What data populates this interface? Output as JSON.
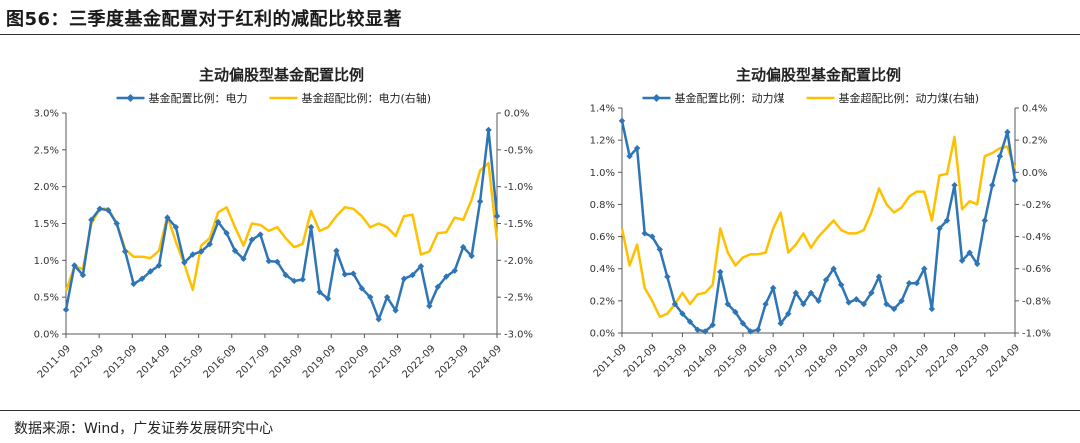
{
  "figure": {
    "title": "图56：三季度基金配置对于红利的减配比较显著",
    "source": "数据来源：Wind，广发证券发展研究中心"
  },
  "colors": {
    "blue": "#2E75B6",
    "yellow": "#FFC000",
    "axis": "#595959"
  },
  "chart_data": [
    {
      "type": "line",
      "title": "主动偏股型基金配置比例",
      "x_tick_labels": [
        "2011-09",
        "2012-09",
        "2013-09",
        "2014-09",
        "2015-09",
        "2016-09",
        "2017-09",
        "2018-09",
        "2019-09",
        "2020-09",
        "2021-09",
        "2022-09",
        "2023-09",
        "2024-09"
      ],
      "x_start": 2011.75,
      "x_end": 2024.75,
      "y_left": {
        "range": [
          0,
          0.03
        ],
        "ticks": [
          0,
          0.005,
          0.01,
          0.015,
          0.02,
          0.025,
          0.03
        ],
        "tick_labels": [
          "0.0%",
          "0.5%",
          "1.0%",
          "1.5%",
          "2.0%",
          "2.5%",
          "3.0%"
        ]
      },
      "y_right": {
        "range": [
          -0.03,
          0
        ],
        "ticks": [
          -0.03,
          -0.025,
          -0.02,
          -0.015,
          -0.01,
          -0.005,
          0
        ],
        "tick_labels": [
          "-3.0%",
          "-2.5%",
          "-2.0%",
          "-1.5%",
          "-1.0%",
          "-0.5%",
          "0.0%"
        ]
      },
      "grid": false,
      "legend_position": "top",
      "series": [
        {
          "name": "基金配置比例：电力",
          "axis": "left",
          "color": "#2E75B6",
          "marker": "diamond",
          "values": [
            0.0033,
            0.0093,
            0.008,
            0.0155,
            0.017,
            0.0168,
            0.015,
            0.0112,
            0.0068,
            0.0075,
            0.0085,
            0.0093,
            0.0158,
            0.0145,
            0.0097,
            0.0108,
            0.0112,
            0.0122,
            0.0152,
            0.0137,
            0.0113,
            0.0102,
            0.0128,
            0.0135,
            0.0099,
            0.0098,
            0.008,
            0.0072,
            0.0074,
            0.0145,
            0.0057,
            0.0048,
            0.0113,
            0.0081,
            0.0082,
            0.0062,
            0.005,
            0.002,
            0.005,
            0.0032,
            0.0075,
            0.008,
            0.0092,
            0.0038,
            0.0064,
            0.0078,
            0.0086,
            0.0118,
            0.0106,
            0.018,
            0.0277,
            0.016
          ]
        },
        {
          "name": "基金超配比例：电力(右轴)",
          "axis": "right",
          "color": "#FFC000",
          "marker": "none",
          "values": [
            -0.0242,
            -0.0208,
            -0.0212,
            -0.015,
            -0.013,
            -0.013,
            -0.015,
            -0.0185,
            -0.0195,
            -0.0195,
            -0.0197,
            -0.0187,
            -0.014,
            -0.0175,
            -0.0205,
            -0.024,
            -0.018,
            -0.017,
            -0.0135,
            -0.0128,
            -0.0155,
            -0.018,
            -0.015,
            -0.0152,
            -0.016,
            -0.0155,
            -0.017,
            -0.0182,
            -0.0178,
            -0.0133,
            -0.016,
            -0.0155,
            -0.014,
            -0.0128,
            -0.013,
            -0.014,
            -0.0155,
            -0.015,
            -0.0155,
            -0.0167,
            -0.014,
            -0.0138,
            -0.0192,
            -0.0188,
            -0.0163,
            -0.0162,
            -0.0142,
            -0.0145,
            -0.0118,
            -0.0078,
            -0.0068,
            -0.0173
          ]
        }
      ]
    },
    {
      "type": "line",
      "title": "主动偏股型基金配置比例",
      "x_tick_labels": [
        "2011-09",
        "2012-09",
        "2013-09",
        "2014-09",
        "2015-09",
        "2016-09",
        "2017-09",
        "2018-09",
        "2019-09",
        "2020-09",
        "2021-09",
        "2022-09",
        "2023-09",
        "2024-09"
      ],
      "x_start": 2011.75,
      "x_end": 2024.75,
      "y_left": {
        "range": [
          0,
          0.014
        ],
        "ticks": [
          0,
          0.002,
          0.004,
          0.006,
          0.008,
          0.01,
          0.012,
          0.014
        ],
        "tick_labels": [
          "0.0%",
          "0.2%",
          "0.4%",
          "0.6%",
          "0.8%",
          "1.0%",
          "1.2%",
          "1.4%"
        ]
      },
      "y_right": {
        "range": [
          -0.01,
          0.004
        ],
        "ticks": [
          -0.01,
          -0.008,
          -0.006,
          -0.004,
          -0.002,
          0,
          0.002,
          0.004
        ],
        "tick_labels": [
          "-1.0%",
          "-0.8%",
          "-0.6%",
          "-0.4%",
          "-0.2%",
          "0.0%",
          "0.2%",
          "0.4%"
        ]
      },
      "grid": false,
      "legend_position": "top",
      "series": [
        {
          "name": "基金配置比例：动力煤",
          "axis": "left",
          "color": "#2E75B6",
          "marker": "diamond",
          "values": [
            0.0132,
            0.011,
            0.0115,
            0.0062,
            0.006,
            0.0052,
            0.0035,
            0.0018,
            0.0012,
            0.0007,
            0.0002,
            0.0001,
            0.0005,
            0.0038,
            0.0018,
            0.0013,
            0.0006,
            0.0001,
            0.0002,
            0.0018,
            0.0028,
            0.0006,
            0.0012,
            0.0025,
            0.0018,
            0.0025,
            0.002,
            0.0033,
            0.004,
            0.003,
            0.0019,
            0.0021,
            0.0018,
            0.0025,
            0.0035,
            0.0018,
            0.0015,
            0.002,
            0.0031,
            0.0031,
            0.004,
            0.0015,
            0.0065,
            0.007,
            0.0092,
            0.0045,
            0.005,
            0.0043,
            0.007,
            0.0092,
            0.011,
            0.0125,
            0.0095
          ]
        },
        {
          "name": "基金超配比例：动力煤(右轴)",
          "axis": "right",
          "color": "#FFC000",
          "marker": "none",
          "values": [
            -0.0035,
            -0.0058,
            -0.0045,
            -0.0072,
            -0.008,
            -0.009,
            -0.0088,
            -0.0082,
            -0.0075,
            -0.0082,
            -0.0076,
            -0.0075,
            -0.007,
            -0.0035,
            -0.005,
            -0.0058,
            -0.0053,
            -0.0051,
            -0.0051,
            -0.005,
            -0.0035,
            -0.0025,
            -0.005,
            -0.0045,
            -0.0038,
            -0.0047,
            -0.004,
            -0.0035,
            -0.003,
            -0.0036,
            -0.0038,
            -0.0038,
            -0.0036,
            -0.0025,
            -0.001,
            -0.002,
            -0.0025,
            -0.0022,
            -0.0015,
            -0.0012,
            -0.0012,
            -0.003,
            -0.0002,
            -0.0001,
            0.0022,
            -0.0023,
            -0.0018,
            -0.002,
            0.001,
            0.0012,
            0.0015,
            0.0016,
            0.0002
          ]
        }
      ]
    }
  ]
}
